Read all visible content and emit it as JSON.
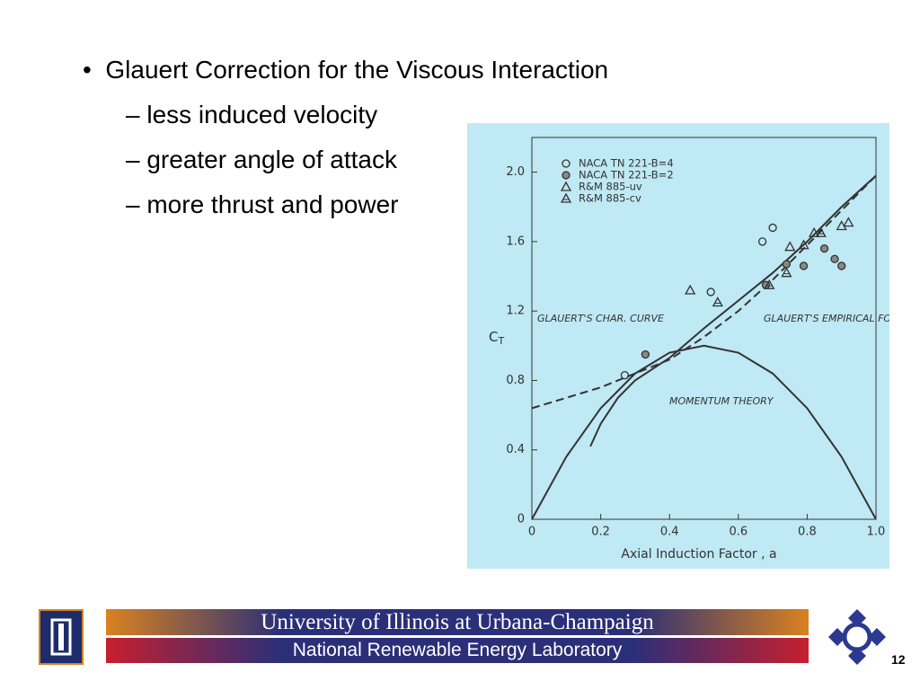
{
  "slide": {
    "bullet": "Glauert Correction for the Viscous Interaction",
    "sub_bullets": [
      "less induced velocity",
      "greater angle of attack",
      "more thrust and power"
    ],
    "footer_line1": "University of Illinois at Urbana-Champaign",
    "footer_line2": "National Renewable Energy Laboratory",
    "page_number": "12"
  },
  "chart_data": {
    "type": "scatter",
    "x_label": "Axial Induction Factor , a",
    "y_label": "C",
    "y_label_sub": "T",
    "xlim": [
      0,
      1.0
    ],
    "ylim": [
      0,
      2.2
    ],
    "xticks": [
      0,
      0.2,
      0.4,
      0.6,
      0.8,
      {
        "value": 1.0,
        "label": "1.0"
      }
    ],
    "yticks": [
      0,
      0.4,
      0.8,
      1.2,
      1.6,
      {
        "value": 2.0,
        "label": "2.0"
      }
    ],
    "annotations": [
      "GLAUERT'S CHAR. CURVE",
      "GLAUERT'S EMPIRICAL FORMULA",
      "MOMENTUM THEORY"
    ],
    "series": [
      {
        "name": "NACA TN 221-B=4",
        "marker": "circle-open",
        "color": "#333333",
        "x": [
          0.27,
          0.52,
          0.67,
          0.7
        ],
        "values": [
          0.83,
          1.31,
          1.6,
          1.68
        ]
      },
      {
        "name": "NACA TN 221-B=2",
        "marker": "circle-filled",
        "color": "#333333",
        "x": [
          0.33,
          0.68,
          0.74,
          0.79,
          0.85,
          0.88,
          0.9
        ],
        "values": [
          0.95,
          1.35,
          1.47,
          1.46,
          1.56,
          1.5,
          1.46
        ]
      },
      {
        "name": "R&M 885-uv",
        "marker": "triangle-open",
        "color": "#333333",
        "x": [
          0.46,
          0.75,
          0.79,
          0.82,
          0.9,
          0.92
        ],
        "values": [
          1.32,
          1.57,
          1.58,
          1.65,
          1.69,
          1.71
        ]
      },
      {
        "name": "R&M 885-cv",
        "marker": "triangle-marked",
        "color": "#333333",
        "x": [
          0.54,
          0.69,
          0.74,
          0.84
        ],
        "values": [
          1.25,
          1.35,
          1.42,
          1.65
        ]
      }
    ],
    "curves": [
      {
        "dash": false,
        "color": "#333333",
        "x": [
          0,
          0.1,
          0.2,
          0.3,
          0.4,
          0.5,
          0.6,
          0.7,
          0.8,
          0.9,
          1.0
        ],
        "values": [
          0,
          0.36,
          0.64,
          0.84,
          0.96,
          1.0,
          0.96,
          0.84,
          0.64,
          0.36,
          0
        ]
      },
      {
        "dash": true,
        "color": "#333333",
        "x": [
          0,
          0.2,
          0.3,
          0.4,
          0.5,
          0.6,
          0.7,
          0.8,
          0.9,
          1.0
        ],
        "values": [
          0.64,
          0.76,
          0.84,
          0.92,
          1.05,
          1.2,
          1.38,
          1.58,
          1.78,
          1.98
        ]
      },
      {
        "dash": false,
        "color": "#333333",
        "x": [
          0.17,
          0.2,
          0.25,
          0.3,
          0.4,
          0.5,
          0.6,
          0.7,
          0.8,
          0.9,
          1.0
        ],
        "values": [
          0.42,
          0.55,
          0.7,
          0.8,
          0.93,
          1.1,
          1.26,
          1.42,
          1.6,
          1.8,
          1.98
        ]
      }
    ]
  }
}
